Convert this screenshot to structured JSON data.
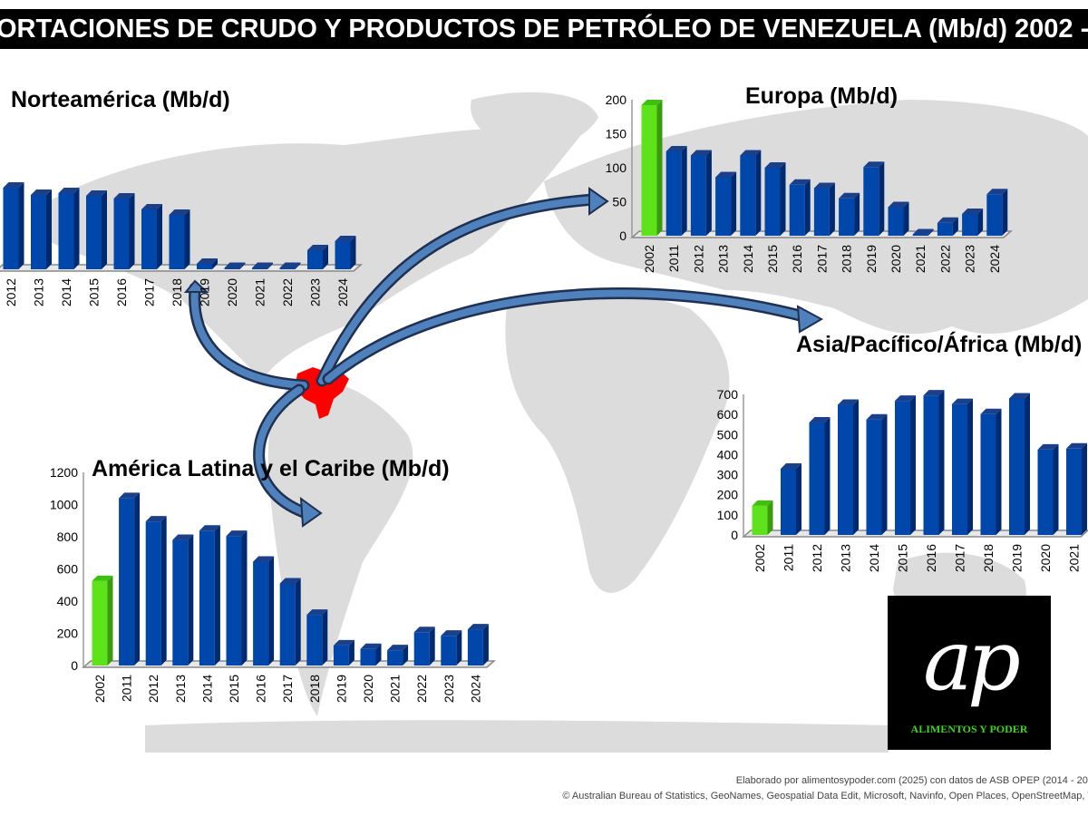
{
  "title": "ORTACIONES DE CRUDO Y PRODUCTOS DE PETRÓLEO DE VENEZUELA (Mb/d) 2002 -",
  "colors": {
    "highlight_bar": "#5ee31a",
    "bar": "#0047ab",
    "venezuela": "#ff0000",
    "arrow": "#4f81bd",
    "arrow_outline": "#1f3050",
    "map": "#dcdcdc"
  },
  "logo": {
    "text": "ap",
    "brand": "ALIMENTOS Y PODER"
  },
  "credits": {
    "line1": "Elaborado por alimentosypoder.com (2025) con datos de ASB OPEP (2014 - 202",
    "line2": "© Australian Bureau of Statistics, GeoNames, Geospatial Data Edit, Microsoft, Navinfo, Open Places, OpenStreetMap, T"
  },
  "chart_data": [
    {
      "type": "bar",
      "title": "Norteamérica (Mb/d)",
      "categories": [
        "2012",
        "2013",
        "2014",
        "2015",
        "2016",
        "2017",
        "2018",
        "2019",
        "2020",
        "2021",
        "2022",
        "2023",
        "2024"
      ],
      "values": [
        900,
        820,
        840,
        810,
        780,
        660,
        600,
        60,
        0,
        0,
        0,
        210,
        310
      ],
      "highlight": [],
      "yticks": []
    },
    {
      "type": "bar",
      "title": "Europa (Mb/d)",
      "categories": [
        "2002",
        "2011",
        "2012",
        "2013",
        "2014",
        "2015",
        "2016",
        "2017",
        "2018",
        "2019",
        "2020",
        "2021",
        "2022",
        "2023",
        "2024"
      ],
      "values": [
        192,
        124,
        118,
        86,
        118,
        100,
        75,
        70,
        55,
        101,
        42,
        1,
        19,
        32,
        61
      ],
      "highlight": [
        "2002"
      ],
      "ylim": [
        0,
        200
      ],
      "yticks": [
        "0",
        "50",
        "100",
        "150",
        "200"
      ]
    },
    {
      "type": "bar",
      "title": "Asia/Pacífico/África (Mb/d)",
      "categories": [
        "2002",
        "2011",
        "2012",
        "2013",
        "2014",
        "2015",
        "2016",
        "2017",
        "2018",
        "2019",
        "2020",
        "2021"
      ],
      "values": [
        145,
        330,
        560,
        648,
        575,
        668,
        695,
        652,
        602,
        680,
        425,
        430
      ],
      "highlight": [
        "2002"
      ],
      "ylim": [
        0,
        700
      ],
      "yticks": [
        "0",
        "100",
        "200",
        "300",
        "400",
        "500",
        "600",
        "700"
      ]
    },
    {
      "type": "bar",
      "title": "América Latina y el Caribe (Mb/d)",
      "categories": [
        "2002",
        "2011",
        "2012",
        "2013",
        "2014",
        "2015",
        "2016",
        "2017",
        "2018",
        "2019",
        "2020",
        "2021",
        "2022",
        "2023",
        "2024"
      ],
      "values": [
        525,
        1040,
        895,
        780,
        838,
        805,
        645,
        510,
        315,
        125,
        103,
        95,
        207,
        185,
        225
      ],
      "highlight": [
        "2002"
      ],
      "ylim": [
        0,
        1200
      ],
      "yticks": [
        "0",
        "200",
        "400",
        "600",
        "800",
        "1000",
        "1200"
      ]
    }
  ]
}
